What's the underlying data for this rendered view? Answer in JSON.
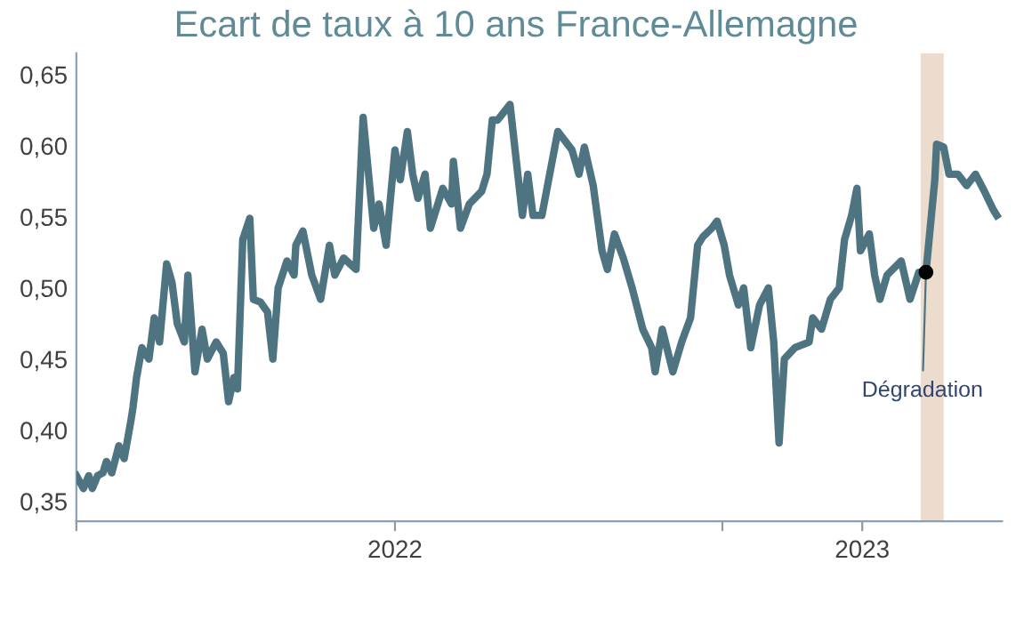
{
  "chart_data": {
    "type": "line",
    "title": "Ecart de taux à 10 ans France-Allemagne",
    "x": [
      "2022-01-01",
      "2022-01-05",
      "2022-01-08",
      "2022-01-10",
      "2022-01-13",
      "2022-01-16",
      "2022-01-18",
      "2022-01-21",
      "2022-01-25",
      "2022-01-28",
      "2022-02-01",
      "2022-02-02",
      "2022-02-04",
      "2022-02-07",
      "2022-02-11",
      "2022-02-14",
      "2022-02-17",
      "2022-02-21",
      "2022-02-24",
      "2022-02-27",
      "2022-03-03",
      "2022-03-05",
      "2022-03-09",
      "2022-03-13",
      "2022-03-16",
      "2022-03-21",
      "2022-03-25",
      "2022-03-28",
      "2022-03-31",
      "2022-04-02",
      "2022-04-05",
      "2022-04-09",
      "2022-04-11",
      "2022-04-15",
      "2022-04-19",
      "2022-04-22",
      "2022-04-25",
      "2022-04-30",
      "2022-05-04",
      "2022-05-05",
      "2022-05-09",
      "2022-05-14",
      "2022-05-19",
      "2022-05-24",
      "2022-05-27",
      "2022-06-01",
      "2022-06-08",
      "2022-06-12",
      "2022-06-18",
      "2022-06-21",
      "2022-06-25",
      "2022-06-30",
      "2022-07-03",
      "2022-07-07",
      "2022-07-10",
      "2022-07-13",
      "2022-07-17",
      "2022-07-20",
      "2022-07-27",
      "2022-08-01",
      "2022-08-02",
      "2022-08-06",
      "2022-08-11",
      "2022-08-18",
      "2022-08-21",
      "2022-08-24",
      "2022-08-27",
      "2022-09-03",
      "2022-09-10",
      "2022-09-13",
      "2022-09-16",
      "2022-09-21",
      "2022-09-30",
      "2022-10-08",
      "2022-10-12",
      "2022-10-15",
      "2022-10-20",
      "2022-10-25",
      "2022-10-28",
      "2022-11-01",
      "2022-11-06",
      "2022-11-11",
      "2022-11-17",
      "2022-11-22",
      "2022-11-24",
      "2022-11-28",
      "2022-12-04",
      "2022-12-09",
      "2022-12-14",
      "2022-12-18",
      "2022-12-21",
      "2022-12-26",
      "2022-12-29",
      "2023-01-02",
      "2023-01-05",
      "2023-01-10",
      "2023-01-13",
      "2023-01-17",
      "2023-01-22",
      "2023-01-27",
      "2023-01-30",
      "2023-02-02",
      "2023-02-05",
      "2023-02-11",
      "2023-02-19",
      "2023-02-21",
      "2023-02-26",
      "2023-03-03",
      "2023-03-08",
      "2023-03-11",
      "2023-03-15",
      "2023-03-18",
      "2023-03-20",
      "2023-03-25",
      "2023-03-28",
      "2023-03-31",
      "2023-04-04",
      "2023-04-12",
      "2023-04-17",
      "2023-04-22",
      "2023-04-26",
      "2023-05-01",
      "2023-05-02",
      "2023-05-06",
      "2023-05-09",
      "2023-05-14",
      "2023-05-19",
      "2023-05-24",
      "2023-05-29",
      "2023-06-03",
      "2023-06-05"
    ],
    "series": [
      {
        "color": "#4e7482",
        "values": [
          0.368,
          0.359,
          0.368,
          0.359,
          0.368,
          0.37,
          0.378,
          0.37,
          0.389,
          0.38,
          0.408,
          0.416,
          0.437,
          0.458,
          0.45,
          0.479,
          0.462,
          0.517,
          0.504,
          0.475,
          0.462,
          0.509,
          0.441,
          0.471,
          0.45,
          0.462,
          0.454,
          0.42,
          0.437,
          0.429,
          0.534,
          0.549,
          0.492,
          0.49,
          0.483,
          0.45,
          0.5,
          0.519,
          0.509,
          0.53,
          0.54,
          0.509,
          0.492,
          0.53,
          0.509,
          0.521,
          0.513,
          0.62,
          0.542,
          0.559,
          0.53,
          0.597,
          0.576,
          0.61,
          0.58,
          0.563,
          0.58,
          0.542,
          0.57,
          0.559,
          0.589,
          0.542,
          0.559,
          0.568,
          0.58,
          0.618,
          0.618,
          0.629,
          0.551,
          0.58,
          0.551,
          0.551,
          0.61,
          0.597,
          0.58,
          0.599,
          0.572,
          0.526,
          0.513,
          0.538,
          0.521,
          0.5,
          0.471,
          0.458,
          0.441,
          0.471,
          0.441,
          0.462,
          0.479,
          0.53,
          0.536,
          0.542,
          0.547,
          0.53,
          0.509,
          0.488,
          0.5,
          0.458,
          0.488,
          0.5,
          0.462,
          0.391,
          0.45,
          0.458,
          0.462,
          0.479,
          0.471,
          0.492,
          0.5,
          0.534,
          0.551,
          0.57,
          0.526,
          0.538,
          0.509,
          0.492,
          0.509,
          0.519,
          0.492,
          0.511,
          0.511,
          0.576,
          0.601,
          0.599,
          0.58,
          0.58,
          0.572,
          0.58,
          0.568,
          0.555,
          0.551
        ]
      }
    ],
    "xlim": [
      "2022-01-01",
      "2023-06-08"
    ],
    "xticks": [
      {
        "value": "2022-01-01",
        "label": null
      },
      {
        "value": "2022-06-30",
        "label": "2022"
      },
      {
        "value": "2023-01-01",
        "label": null
      },
      {
        "value": "2023-03-21",
        "label": "2023"
      }
    ],
    "ylim": [
      0.336,
      0.665
    ],
    "yticks": [
      {
        "value": 0.35,
        "label": "0,35"
      },
      {
        "value": 0.4,
        "label": "0,40"
      },
      {
        "value": 0.45,
        "label": "0,45"
      },
      {
        "value": 0.5,
        "label": "0,50"
      },
      {
        "value": 0.55,
        "label": "0,55"
      },
      {
        "value": 0.6,
        "label": "0,60"
      },
      {
        "value": 0.65,
        "label": "0,65"
      }
    ],
    "bands": [
      {
        "axis": "x",
        "from": "2023-04-23",
        "to": "2023-05-06",
        "color": "#ecdccd"
      }
    ],
    "annotations": [
      {
        "text": "Dégradation",
        "x": "2023-04-26",
        "y": 0.511
      }
    ],
    "grid": false,
    "marker": "none",
    "line_style": "solid"
  }
}
